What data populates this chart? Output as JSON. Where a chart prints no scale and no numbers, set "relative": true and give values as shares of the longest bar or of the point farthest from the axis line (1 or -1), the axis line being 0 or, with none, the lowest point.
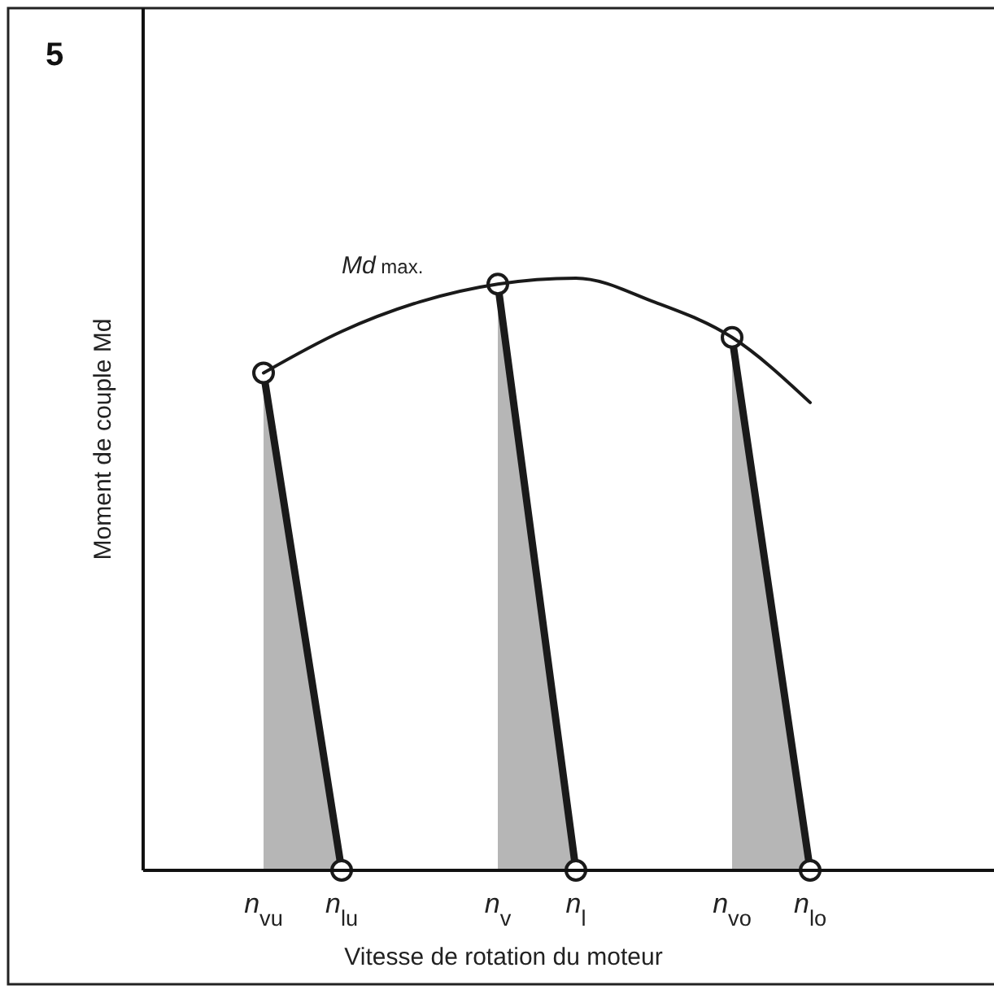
{
  "chart_data": {
    "type": "line",
    "relative": true,
    "xlabel": "Vitesse de rotation du moteur",
    "ylabel": "Moment de couple Md",
    "annotations": [
      "5"
    ],
    "categories": [
      "n$_{vu}$",
      "n$_{lu}$",
      null,
      "n$_{v}$",
      "n$_{l}$",
      null,
      "n$_{vo}$",
      "n$_{lo}$"
    ],
    "series": [
      {
        "name": "Md max.",
        "type": "line",
        "color": "#1a1a1a",
        "values": [
          0.84,
          0.91,
          0.96,
          0.99,
          1.0,
          0.96,
          0.9,
          0.79
        ]
      },
      {
        "type": "area",
        "color": "#1a1a1a",
        "marker": "circle",
        "values": [
          0.84,
          0,
          null,
          null,
          null,
          null,
          null,
          null
        ]
      },
      {
        "type": "area",
        "color": "#1a1a1a",
        "marker": "circle",
        "values": [
          null,
          null,
          null,
          0.99,
          0,
          null,
          null,
          null
        ]
      },
      {
        "type": "area",
        "color": "#1a1a1a",
        "marker": "circle",
        "values": [
          null,
          null,
          null,
          null,
          null,
          null,
          0.9,
          0
        ]
      }
    ]
  }
}
